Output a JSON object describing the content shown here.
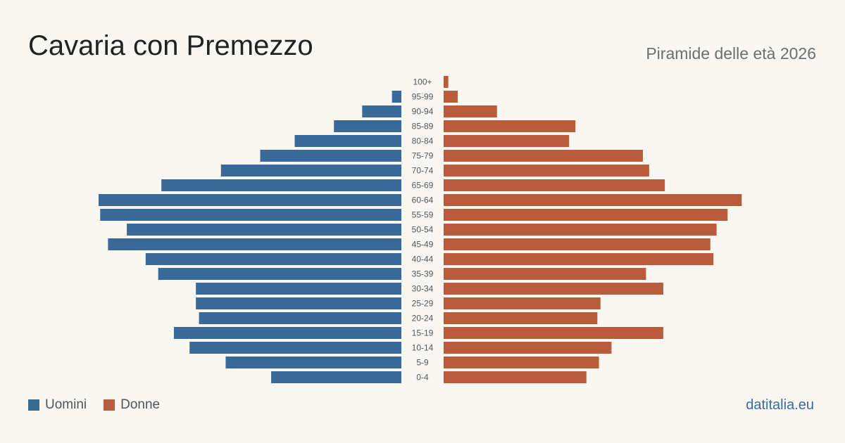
{
  "header": {
    "title": "Cavaria con Premezzo",
    "subtitle": "Piramide delle età 2026"
  },
  "legend": {
    "men_label": "Uomini",
    "women_label": "Donne"
  },
  "footer": {
    "brand": "datitalia.eu"
  },
  "colors": {
    "men": "#3b6a9a",
    "women": "#b85c3c",
    "background": "#f9f7f2"
  },
  "chart_data": {
    "type": "bar",
    "orientation": "horizontal-pyramid",
    "categories": [
      "100+",
      "95-99",
      "90-94",
      "85-89",
      "80-84",
      "75-79",
      "70-74",
      "65-69",
      "60-64",
      "55-59",
      "50-54",
      "45-49",
      "40-44",
      "35-39",
      "30-34",
      "25-29",
      "20-24",
      "15-19",
      "10-14",
      "5-9",
      "0-4"
    ],
    "series": [
      {
        "name": "Uomini",
        "values": [
          0,
          6,
          25,
          43,
          68,
          90,
          115,
          153,
          193,
          192,
          175,
          187,
          163,
          155,
          131,
          131,
          129,
          145,
          135,
          112,
          83
        ]
      },
      {
        "name": "Donne",
        "values": [
          3,
          9,
          34,
          84,
          80,
          127,
          131,
          141,
          190,
          181,
          174,
          170,
          172,
          129,
          140,
          100,
          98,
          140,
          107,
          99,
          91
        ]
      }
    ],
    "grid": false,
    "legend_position": "bottom-left"
  }
}
